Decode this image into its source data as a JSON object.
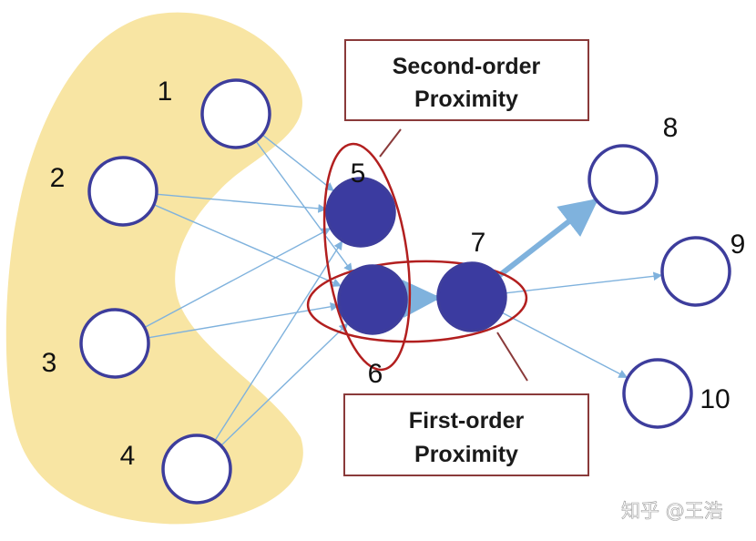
{
  "nodes": [
    {
      "id": "1",
      "label": "1",
      "filled": false
    },
    {
      "id": "2",
      "label": "2",
      "filled": false
    },
    {
      "id": "3",
      "label": "3",
      "filled": false
    },
    {
      "id": "4",
      "label": "4",
      "filled": false
    },
    {
      "id": "5",
      "label": "5",
      "filled": true
    },
    {
      "id": "6",
      "label": "6",
      "filled": true
    },
    {
      "id": "7",
      "label": "7",
      "filled": true
    },
    {
      "id": "8",
      "label": "8",
      "filled": false
    },
    {
      "id": "9",
      "label": "9",
      "filled": false
    },
    {
      "id": "10",
      "label": "10",
      "filled": false
    }
  ],
  "edges": [
    {
      "from": "1",
      "to": "5",
      "weight": "normal"
    },
    {
      "from": "1",
      "to": "6",
      "weight": "normal"
    },
    {
      "from": "2",
      "to": "5",
      "weight": "normal"
    },
    {
      "from": "2",
      "to": "6",
      "weight": "normal"
    },
    {
      "from": "3",
      "to": "5",
      "weight": "normal"
    },
    {
      "from": "3",
      "to": "6",
      "weight": "normal"
    },
    {
      "from": "4",
      "to": "5",
      "weight": "normal"
    },
    {
      "from": "4",
      "to": "6",
      "weight": "normal"
    },
    {
      "from": "6",
      "to": "7",
      "weight": "heavy"
    },
    {
      "from": "7",
      "to": "8",
      "weight": "heavy"
    },
    {
      "from": "7",
      "to": "9",
      "weight": "normal"
    },
    {
      "from": "7",
      "to": "10",
      "weight": "normal"
    }
  ],
  "callouts": {
    "second_order": {
      "line1": "Second-order",
      "line2": "Proximity"
    },
    "first_order": {
      "line1": "First-order",
      "line2": "Proximity"
    }
  },
  "watermark": "知乎 @王浩",
  "colors": {
    "group_fill": "#f8e5a3",
    "node_stroke": "#3d3d9c",
    "node_fill": "#3b3ba0",
    "edge": "#7fb2dd",
    "highlight": "#b21f1f",
    "callout_border": "#8a3a3a"
  }
}
